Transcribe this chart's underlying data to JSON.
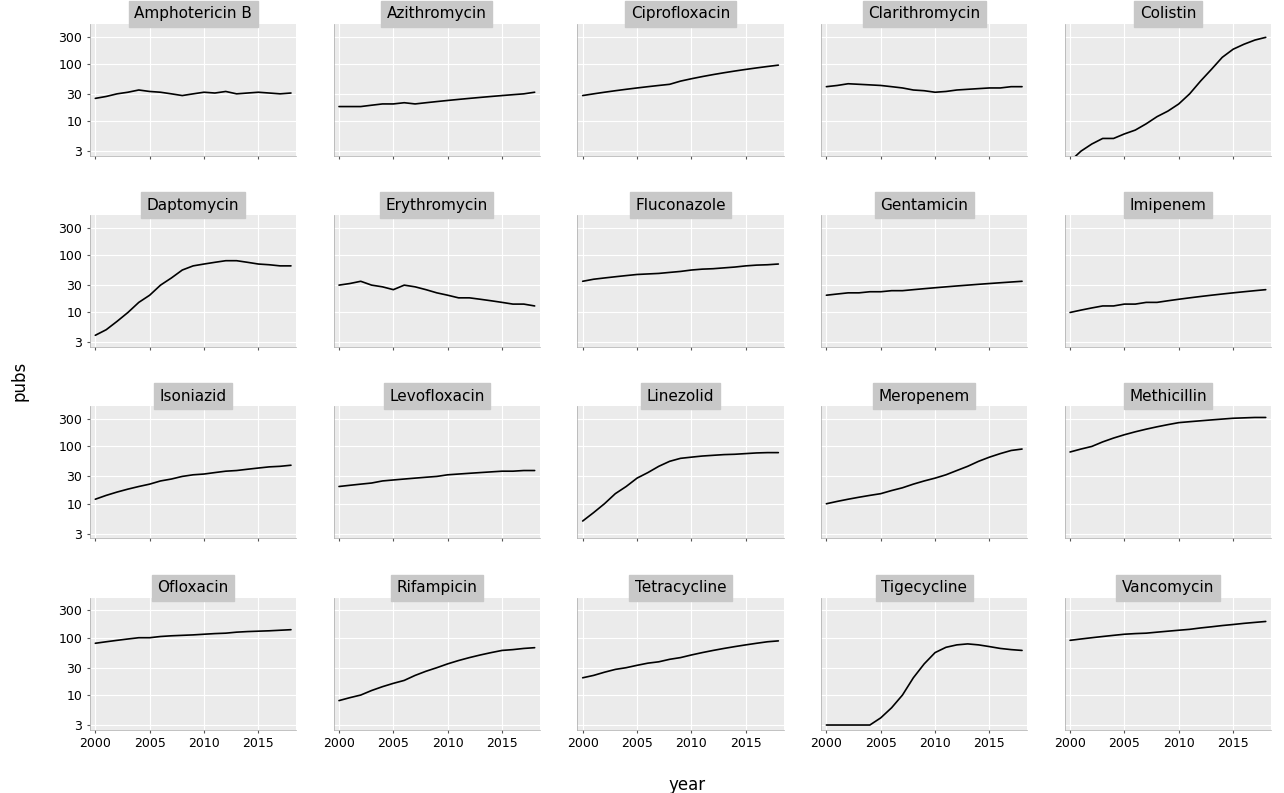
{
  "antibiotics": [
    "Amphotericin B",
    "Azithromycin",
    "Ciprofloxacin",
    "Clarithromycin",
    "Colistin",
    "Daptomycin",
    "Erythromycin",
    "Fluconazole",
    "Gentamicin",
    "Imipenem",
    "Isoniazid",
    "Levofloxacin",
    "Linezolid",
    "Meropenem",
    "Methicillin",
    "Ofloxacin",
    "Rifampicin",
    "Tetracycline",
    "Tigecycline",
    "Vancomycin"
  ],
  "years": [
    2000,
    2001,
    2002,
    2003,
    2004,
    2005,
    2006,
    2007,
    2008,
    2009,
    2010,
    2011,
    2012,
    2013,
    2014,
    2015,
    2016,
    2017,
    2018
  ],
  "series": {
    "Amphotericin B": [
      25,
      27,
      30,
      32,
      35,
      33,
      32,
      30,
      28,
      30,
      32,
      31,
      33,
      30,
      31,
      32,
      31,
      30,
      31
    ],
    "Azithromycin": [
      18,
      18,
      18,
      19,
      20,
      20,
      21,
      20,
      21,
      22,
      23,
      24,
      25,
      26,
      27,
      28,
      29,
      30,
      32
    ],
    "Ciprofloxacin": [
      28,
      30,
      32,
      34,
      36,
      38,
      40,
      42,
      44,
      50,
      55,
      60,
      65,
      70,
      75,
      80,
      85,
      90,
      95
    ],
    "Clarithromycin": [
      40,
      42,
      45,
      44,
      43,
      42,
      40,
      38,
      35,
      34,
      32,
      33,
      35,
      36,
      37,
      38,
      38,
      40,
      40
    ],
    "Colistin": [
      2,
      3,
      4,
      5,
      5,
      6,
      7,
      9,
      12,
      15,
      20,
      30,
      50,
      80,
      130,
      180,
      220,
      260,
      290
    ],
    "Daptomycin": [
      4,
      5,
      7,
      10,
      15,
      20,
      30,
      40,
      55,
      65,
      70,
      75,
      80,
      80,
      75,
      70,
      68,
      65,
      65
    ],
    "Erythromycin": [
      30,
      32,
      35,
      30,
      28,
      25,
      30,
      28,
      25,
      22,
      20,
      18,
      18,
      17,
      16,
      15,
      14,
      14,
      13
    ],
    "Fluconazole": [
      35,
      38,
      40,
      42,
      44,
      46,
      47,
      48,
      50,
      52,
      55,
      57,
      58,
      60,
      62,
      65,
      67,
      68,
      70
    ],
    "Gentamicin": [
      20,
      21,
      22,
      22,
      23,
      23,
      24,
      24,
      25,
      26,
      27,
      28,
      29,
      30,
      31,
      32,
      33,
      34,
      35
    ],
    "Imipenem": [
      10,
      11,
      12,
      13,
      13,
      14,
      14,
      15,
      15,
      16,
      17,
      18,
      19,
      20,
      21,
      22,
      23,
      24,
      25
    ],
    "Isoniazid": [
      12,
      14,
      16,
      18,
      20,
      22,
      25,
      27,
      30,
      32,
      33,
      35,
      37,
      38,
      40,
      42,
      44,
      45,
      47
    ],
    "Levofloxacin": [
      20,
      21,
      22,
      23,
      25,
      26,
      27,
      28,
      29,
      30,
      32,
      33,
      34,
      35,
      36,
      37,
      37,
      38,
      38
    ],
    "Linezolid": [
      5,
      7,
      10,
      15,
      20,
      28,
      35,
      45,
      55,
      62,
      65,
      68,
      70,
      72,
      73,
      75,
      77,
      78,
      78
    ],
    "Meropenem": [
      10,
      11,
      12,
      13,
      14,
      15,
      17,
      19,
      22,
      25,
      28,
      32,
      38,
      45,
      55,
      65,
      75,
      85,
      90
    ],
    "Methicillin": [
      80,
      90,
      100,
      120,
      140,
      160,
      180,
      200,
      220,
      240,
      260,
      270,
      280,
      290,
      300,
      310,
      315,
      320,
      320
    ],
    "Ofloxacin": [
      80,
      85,
      90,
      95,
      100,
      100,
      105,
      108,
      110,
      112,
      115,
      118,
      120,
      125,
      128,
      130,
      132,
      135,
      138
    ],
    "Rifampicin": [
      8,
      9,
      10,
      12,
      14,
      16,
      18,
      22,
      26,
      30,
      35,
      40,
      45,
      50,
      55,
      60,
      62,
      65,
      67
    ],
    "Tetracycline": [
      20,
      22,
      25,
      28,
      30,
      33,
      36,
      38,
      42,
      45,
      50,
      55,
      60,
      65,
      70,
      75,
      80,
      85,
      88
    ],
    "Tigecycline": [
      3,
      3,
      3,
      3,
      3,
      4,
      6,
      10,
      20,
      35,
      55,
      68,
      75,
      78,
      75,
      70,
      65,
      62,
      60
    ],
    "Vancomycin": [
      90,
      95,
      100,
      105,
      110,
      115,
      118,
      120,
      125,
      130,
      135,
      140,
      148,
      155,
      163,
      170,
      178,
      185,
      192
    ]
  },
  "yticks": [
    3,
    10,
    30,
    100,
    300
  ],
  "yticklabels": [
    "3",
    "10",
    "30",
    "100",
    "300"
  ],
  "ylim_log": [
    2.5,
    500
  ],
  "background_color": "#EBEBEB",
  "panel_title_bg": "#C8C8C8",
  "grid_color": "#FFFFFF",
  "line_color": "#000000",
  "title_fontsize": 11,
  "axis_label_fontsize": 12,
  "tick_fontsize": 9,
  "nrows": 4,
  "ncols": 5
}
